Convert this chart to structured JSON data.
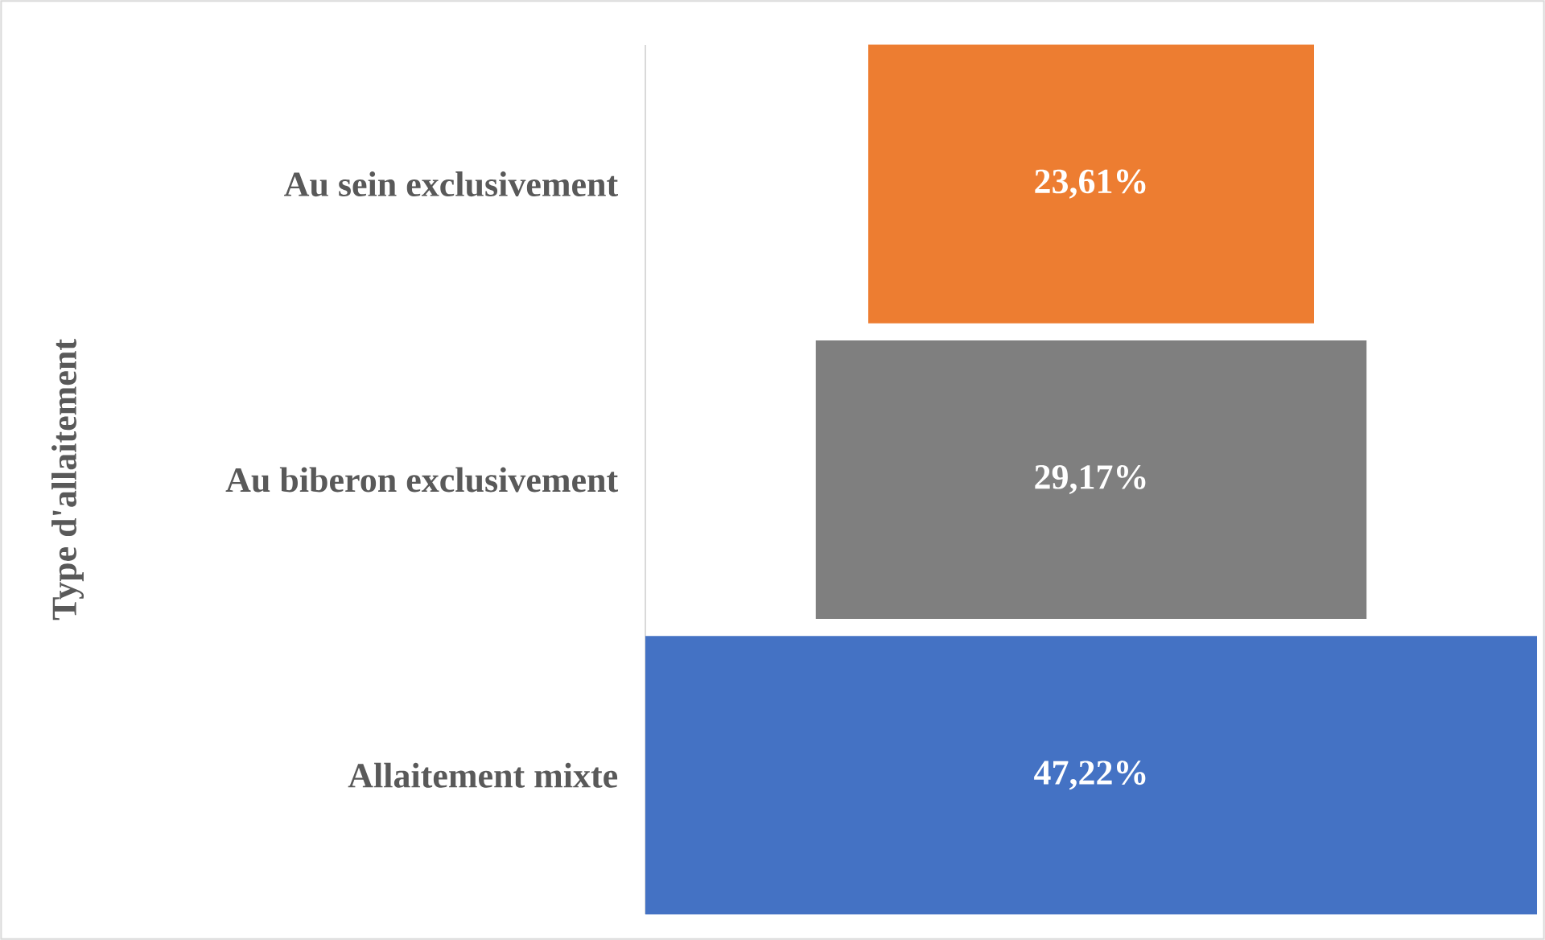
{
  "chart_data": {
    "type": "other",
    "ylabel": "Type d'allaitement",
    "categories": [
      "Au sein exclusivement",
      "Au biberon exclusivement",
      "Allaitement mixte"
    ],
    "values": [
      23.61,
      29.17,
      47.22
    ],
    "value_labels": [
      "23,61%",
      "29,17%",
      "47,22%"
    ],
    "colors": [
      "#ed7d31",
      "#7f7f7f",
      "#4472c4"
    ]
  }
}
